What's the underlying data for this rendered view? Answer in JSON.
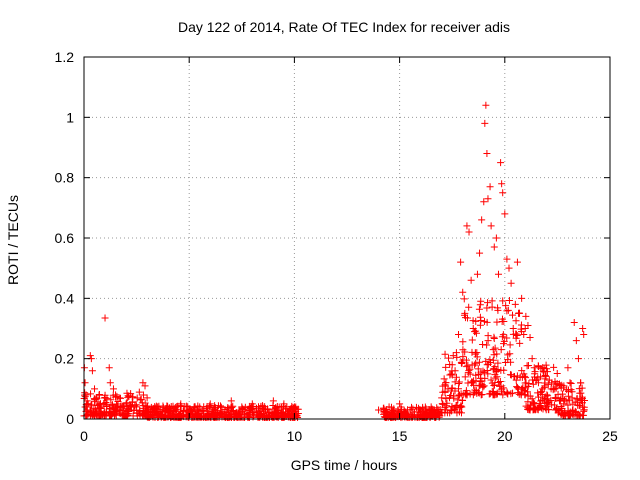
{
  "chart_data": {
    "type": "scatter",
    "title": "Day 122 of 2014, Rate Of TEC Index for receiver adis",
    "xlabel": "GPS time / hours",
    "ylabel": "ROTI / TECUs",
    "xlim": [
      0,
      25
    ],
    "ylim": [
      0,
      1.2
    ],
    "xticks": [
      0,
      5,
      10,
      15,
      20,
      25
    ],
    "yticks": [
      0,
      0.2,
      0.4,
      0.6,
      0.8,
      1,
      1.2
    ],
    "xtick_labels": [
      "0",
      "5",
      "10",
      "15",
      "20",
      "25"
    ],
    "ytick_labels": [
      "0",
      "0.2",
      "0.4",
      "0.6",
      "0.8",
      "1",
      "1.2"
    ],
    "grid": true,
    "marker": "+",
    "marker_color": "#ff0000",
    "series": [
      {
        "name": "ROTI",
        "points": [
          [
            0.02,
            0.17
          ],
          [
            0.05,
            0.12
          ],
          [
            0.1,
            0.08
          ],
          [
            0.15,
            0.06
          ],
          [
            0.2,
            0.05
          ],
          [
            0.3,
            0.21
          ],
          [
            0.35,
            0.2
          ],
          [
            0.4,
            0.16
          ],
          [
            0.5,
            0.1
          ],
          [
            0.6,
            0.07
          ],
          [
            0.7,
            0.05
          ],
          [
            0.8,
            0.04
          ],
          [
            1.0,
            0.335
          ],
          [
            1.2,
            0.17
          ],
          [
            1.25,
            0.12
          ],
          [
            1.4,
            0.1
          ],
          [
            1.5,
            0.08
          ],
          [
            1.7,
            0.07
          ],
          [
            2.0,
            0.05
          ],
          [
            2.5,
            0.04
          ],
          [
            2.8,
            0.12
          ],
          [
            2.9,
            0.11
          ],
          [
            3.0,
            0.07
          ],
          [
            3.5,
            0.04
          ],
          [
            4.0,
            0.03
          ],
          [
            4.6,
            0.05
          ],
          [
            5.0,
            0.03
          ],
          [
            5.5,
            0.04
          ],
          [
            6.0,
            0.05
          ],
          [
            6.5,
            0.04
          ],
          [
            7.0,
            0.06
          ],
          [
            7.5,
            0.04
          ],
          [
            8.0,
            0.05
          ],
          [
            8.5,
            0.04
          ],
          [
            9.0,
            0.06
          ],
          [
            9.5,
            0.05
          ],
          [
            10.0,
            0.04
          ],
          [
            14.0,
            0.03
          ],
          [
            14.5,
            0.04
          ],
          [
            15.0,
            0.05
          ],
          [
            15.5,
            0.03
          ],
          [
            16.0,
            0.03
          ],
          [
            16.5,
            0.04
          ],
          [
            17.0,
            0.07
          ],
          [
            17.3,
            0.1
          ],
          [
            17.5,
            0.18
          ],
          [
            17.7,
            0.22
          ],
          [
            17.8,
            0.28
          ],
          [
            17.9,
            0.52
          ],
          [
            18.0,
            0.42
          ],
          [
            18.1,
            0.35
          ],
          [
            18.2,
            0.64
          ],
          [
            18.3,
            0.62
          ],
          [
            18.4,
            0.46
          ],
          [
            18.5,
            0.3
          ],
          [
            18.6,
            0.22
          ],
          [
            18.7,
            0.48
          ],
          [
            18.8,
            0.55
          ],
          [
            18.9,
            0.66
          ],
          [
            19.0,
            0.72
          ],
          [
            19.05,
            0.98
          ],
          [
            19.1,
            1.04
          ],
          [
            19.15,
            0.88
          ],
          [
            19.2,
            0.73
          ],
          [
            19.3,
            0.77
          ],
          [
            19.35,
            0.64
          ],
          [
            19.5,
            0.57
          ],
          [
            19.6,
            0.6
          ],
          [
            19.7,
            0.48
          ],
          [
            19.8,
            0.85
          ],
          [
            19.85,
            0.78
          ],
          [
            19.9,
            0.75
          ],
          [
            20.0,
            0.68
          ],
          [
            20.1,
            0.53
          ],
          [
            20.2,
            0.5
          ],
          [
            20.3,
            0.45
          ],
          [
            20.4,
            0.3
          ],
          [
            20.5,
            0.38
          ],
          [
            20.6,
            0.52
          ],
          [
            20.7,
            0.35
          ],
          [
            20.8,
            0.4
          ],
          [
            20.9,
            0.28
          ],
          [
            21.0,
            0.34
          ],
          [
            21.1,
            0.31
          ],
          [
            21.2,
            0.27
          ],
          [
            21.3,
            0.2
          ],
          [
            21.4,
            0.17
          ],
          [
            21.5,
            0.13
          ],
          [
            21.6,
            0.12
          ],
          [
            21.7,
            0.14
          ],
          [
            21.8,
            0.1
          ],
          [
            21.9,
            0.11
          ],
          [
            22.0,
            0.08
          ],
          [
            22.2,
            0.1
          ],
          [
            22.4,
            0.07
          ],
          [
            22.6,
            0.06
          ],
          [
            22.8,
            0.05
          ],
          [
            23.0,
            0.17
          ],
          [
            23.1,
            0.12
          ],
          [
            23.2,
            0.07
          ],
          [
            23.3,
            0.32
          ],
          [
            23.4,
            0.26
          ],
          [
            23.5,
            0.2
          ],
          [
            23.6,
            0.12
          ],
          [
            23.7,
            0.3
          ],
          [
            23.75,
            0.28
          ]
        ],
        "dense_bands": [
          {
            "x": [
              0,
              3
            ],
            "y": [
              0.01,
              0.09
            ]
          },
          {
            "x": [
              3,
              10.2
            ],
            "y": [
              0.005,
              0.045
            ]
          },
          {
            "x": [
              14.2,
              17.0
            ],
            "y": [
              0.005,
              0.04
            ]
          },
          {
            "x": [
              17.0,
              18.0
            ],
            "y": [
              0.02,
              0.22
            ]
          },
          {
            "x": [
              18.0,
              21.0
            ],
            "y": [
              0.08,
              0.4
            ]
          },
          {
            "x": [
              21.0,
              22.5
            ],
            "y": [
              0.03,
              0.18
            ]
          },
          {
            "x": [
              22.5,
              23.8
            ],
            "y": [
              0.01,
              0.12
            ]
          }
        ]
      }
    ]
  }
}
